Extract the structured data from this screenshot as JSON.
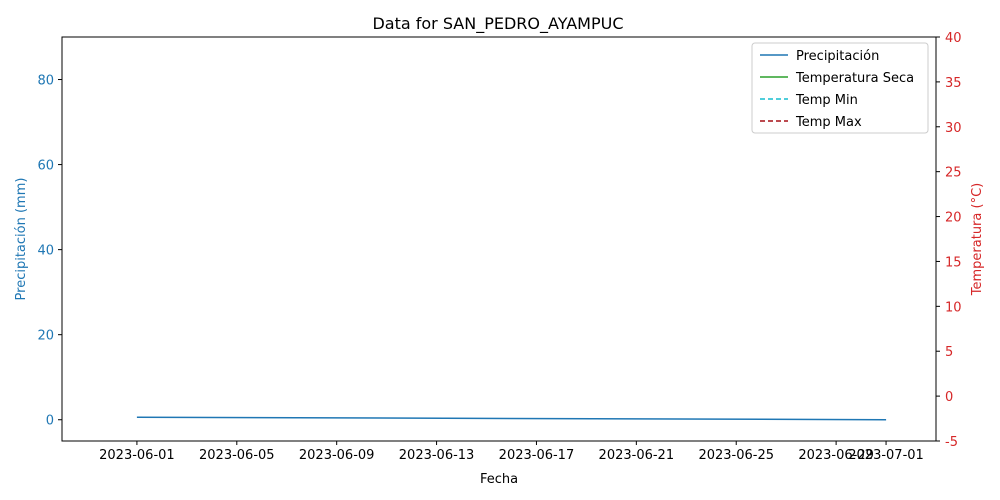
{
  "chart_data": {
    "type": "line",
    "title": "Data for SAN_PEDRO_AYAMPUC",
    "xlabel": "Fecha",
    "ylabel_left": "Precipitación (mm)",
    "ylabel_right": "Temperatura (°C)",
    "x_ticks": [
      "2023-06-01",
      "2023-06-05",
      "2023-06-09",
      "2023-06-13",
      "2023-06-17",
      "2023-06-21",
      "2023-06-25",
      "2023-06-29",
      "2023-07-01"
    ],
    "y_left_ticks": [
      0,
      20,
      40,
      60,
      80
    ],
    "y_right_ticks": [
      -5,
      0,
      5,
      10,
      15,
      20,
      25,
      30,
      35,
      40
    ],
    "ylim_left": [
      -5,
      90
    ],
    "ylim_right": [
      -5,
      40
    ],
    "xlim": [
      "2023-05-29",
      "2023-07-03"
    ],
    "grid": false,
    "legend_placement": "top-right",
    "series": [
      {
        "name": "Precipitación",
        "axis": "left",
        "color": "#1f77b4",
        "dash": "solid",
        "x": [
          "2023-06-01",
          "2023-07-01"
        ],
        "values": [
          0.6,
          0.0
        ]
      },
      {
        "name": "Temperatura Seca",
        "axis": "right",
        "color": "#2ca02c",
        "dash": "solid",
        "x": [],
        "values": []
      },
      {
        "name": "Temp Min",
        "axis": "right",
        "color": "#17becf",
        "dash": "dashed",
        "x": [],
        "values": []
      },
      {
        "name": "Temp Max",
        "axis": "right",
        "color": "#a50f15",
        "dash": "dashed",
        "x": [],
        "values": []
      }
    ],
    "colors": {
      "left_axis": "#1f77b4",
      "right_axis": "#d62728",
      "axis_line": "#000000"
    }
  }
}
